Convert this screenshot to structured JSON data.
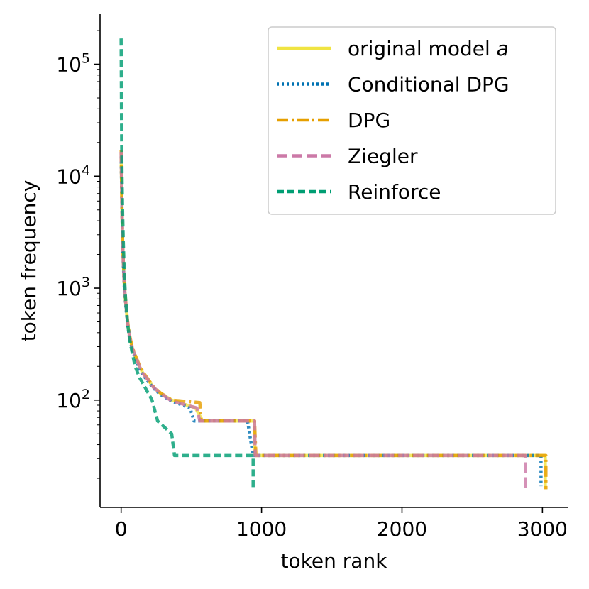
{
  "chart_data": {
    "type": "line",
    "title": "",
    "xlabel": "token rank",
    "ylabel": "token frequency",
    "yscale": "log",
    "xlim": [
      -150,
      3180
    ],
    "ylim": [
      11,
      280000
    ],
    "grid": false,
    "legend_position": "top-right",
    "x_ticks": [
      {
        "value": 0,
        "label": "0"
      },
      {
        "value": 1000,
        "label": "1000"
      },
      {
        "value": 2000,
        "label": "2000"
      },
      {
        "value": 3000,
        "label": "3000"
      }
    ],
    "y_ticks": [
      {
        "value": 100,
        "base": "10",
        "exp": "2"
      },
      {
        "value": 1000,
        "base": "10",
        "exp": "3"
      },
      {
        "value": 10000,
        "base": "10",
        "exp": "4"
      },
      {
        "value": 100000,
        "base": "10",
        "exp": "5"
      }
    ],
    "series": [
      {
        "name": "original model",
        "name_italic": "a",
        "color": "#f0e442",
        "dash": "solid",
        "points": [
          [
            0,
            16000
          ],
          [
            3,
            9000
          ],
          [
            6,
            5000
          ],
          [
            10,
            2800
          ],
          [
            15,
            1800
          ],
          [
            22,
            1100
          ],
          [
            32,
            750
          ],
          [
            45,
            500
          ],
          [
            60,
            370
          ],
          [
            80,
            290
          ],
          [
            105,
            240
          ],
          [
            130,
            200
          ],
          [
            160,
            170
          ],
          [
            195,
            150
          ],
          [
            230,
            130
          ],
          [
            280,
            115
          ],
          [
            360,
            100
          ],
          [
            530,
            85
          ],
          [
            580,
            65
          ],
          [
            950,
            65
          ],
          [
            952,
            32
          ],
          [
            3020,
            32
          ],
          [
            3020,
            16
          ]
        ]
      },
      {
        "name": "Conditional DPG",
        "color": "#0072b2",
        "dash": "dotted",
        "points": [
          [
            0,
            15000
          ],
          [
            3,
            8500
          ],
          [
            6,
            4800
          ],
          [
            10,
            2700
          ],
          [
            15,
            1700
          ],
          [
            22,
            1050
          ],
          [
            32,
            720
          ],
          [
            45,
            480
          ],
          [
            60,
            360
          ],
          [
            80,
            280
          ],
          [
            105,
            230
          ],
          [
            130,
            190
          ],
          [
            160,
            165
          ],
          [
            195,
            145
          ],
          [
            230,
            128
          ],
          [
            280,
            112
          ],
          [
            360,
            98
          ],
          [
            490,
            85
          ],
          [
            520,
            65
          ],
          [
            900,
            65
          ],
          [
            940,
            32
          ],
          [
            2990,
            32
          ],
          [
            2990,
            17
          ]
        ]
      },
      {
        "name": "DPG",
        "color": "#e69f00",
        "dash": "dashdot",
        "points": [
          [
            0,
            17000
          ],
          [
            3,
            9500
          ],
          [
            6,
            5200
          ],
          [
            10,
            2900
          ],
          [
            15,
            1850
          ],
          [
            22,
            1150
          ],
          [
            32,
            780
          ],
          [
            45,
            520
          ],
          [
            60,
            380
          ],
          [
            80,
            295
          ],
          [
            105,
            245
          ],
          [
            130,
            205
          ],
          [
            160,
            175
          ],
          [
            195,
            152
          ],
          [
            230,
            132
          ],
          [
            280,
            116
          ],
          [
            360,
            100
          ],
          [
            560,
            95
          ],
          [
            570,
            65
          ],
          [
            950,
            65
          ],
          [
            960,
            32
          ],
          [
            3025,
            32
          ],
          [
            3025,
            16
          ]
        ]
      },
      {
        "name": "Ziegler",
        "color": "#cc79a7",
        "dash": "dashed",
        "points": [
          [
            0,
            16500
          ],
          [
            3,
            9200
          ],
          [
            6,
            5000
          ],
          [
            10,
            2800
          ],
          [
            15,
            1800
          ],
          [
            22,
            1100
          ],
          [
            32,
            760
          ],
          [
            45,
            500
          ],
          [
            60,
            370
          ],
          [
            80,
            290
          ],
          [
            105,
            240
          ],
          [
            130,
            200
          ],
          [
            160,
            170
          ],
          [
            195,
            150
          ],
          [
            230,
            130
          ],
          [
            280,
            115
          ],
          [
            360,
            98
          ],
          [
            540,
            85
          ],
          [
            560,
            65
          ],
          [
            950,
            65
          ],
          [
            955,
            32
          ],
          [
            2880,
            32
          ],
          [
            2880,
            16
          ]
        ]
      },
      {
        "name": "Reinforce",
        "color": "#009e73",
        "dash": "densedash",
        "points": [
          [
            0,
            170000
          ],
          [
            2,
            50000
          ],
          [
            4,
            20000
          ],
          [
            7,
            9000
          ],
          [
            11,
            4500
          ],
          [
            16,
            2500
          ],
          [
            23,
            1300
          ],
          [
            32,
            800
          ],
          [
            45,
            500
          ],
          [
            60,
            350
          ],
          [
            80,
            260
          ],
          [
            100,
            200
          ],
          [
            130,
            160
          ],
          [
            170,
            130
          ],
          [
            220,
            100
          ],
          [
            260,
            65
          ],
          [
            360,
            50
          ],
          [
            380,
            32
          ],
          [
            940,
            32
          ],
          [
            940,
            16
          ]
        ]
      }
    ]
  }
}
